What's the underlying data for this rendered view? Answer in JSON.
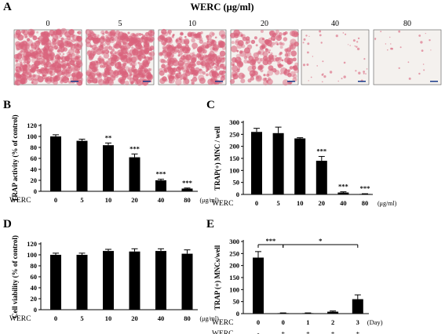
{
  "figure": {
    "title": "WERC  (μg/ml)",
    "panel_letters": [
      "A",
      "B",
      "C",
      "D",
      "E"
    ]
  },
  "micrographs": {
    "concentrations": [
      "0",
      "5",
      "10",
      "20",
      "40",
      "80"
    ],
    "stain_levels": [
      1.0,
      0.95,
      0.75,
      0.45,
      0.08,
      0.03
    ],
    "stain_color": "#d9637c"
  },
  "chart_data": [
    {
      "panel": "B",
      "type": "bar",
      "ylabel": "TRAP activity (% of control)",
      "ylim": [
        0,
        120
      ],
      "yticks": [
        "0",
        "20",
        "40",
        "60",
        "80",
        "100",
        "120"
      ],
      "row_label": "WERC",
      "categories": [
        "0",
        "5",
        "10",
        "20",
        "40",
        "80"
      ],
      "values": [
        100,
        92,
        84,
        62,
        20,
        5
      ],
      "errors": [
        3,
        3,
        4,
        6,
        2,
        1
      ],
      "significance": [
        "",
        "",
        "**",
        "***",
        "***",
        "***"
      ],
      "unit": "(μg/ml)"
    },
    {
      "panel": "C",
      "type": "bar",
      "ylabel": "TRAP(+) MNC / well",
      "ylim": [
        0,
        300
      ],
      "yticks": [
        "0",
        "50",
        "100",
        "150",
        "200",
        "250",
        "300"
      ],
      "row_label": "WERC",
      "categories": [
        "0",
        "5",
        "10",
        "20",
        "40",
        "80"
      ],
      "values": [
        260,
        255,
        233,
        140,
        8,
        2
      ],
      "errors": [
        15,
        25,
        3,
        18,
        3,
        1
      ],
      "significance": [
        "",
        "",
        "",
        "***",
        "***",
        "***"
      ],
      "unit": "(μg/ml)"
    },
    {
      "panel": "D",
      "type": "bar",
      "ylabel": "Cell viability (% of control)",
      "ylim": [
        0,
        120
      ],
      "yticks": [
        "0",
        "20",
        "40",
        "60",
        "80",
        "100",
        "120"
      ],
      "row_label": "WERC",
      "categories": [
        "0",
        "5",
        "10",
        "20",
        "40",
        "80"
      ],
      "values": [
        100,
        100,
        107,
        106,
        107,
        102
      ],
      "errors": [
        3,
        3,
        3,
        5,
        4,
        7
      ],
      "significance": [
        "",
        "",
        "",
        "",
        "",
        ""
      ],
      "unit": "(μg/ml)"
    },
    {
      "panel": "E",
      "type": "bar",
      "ylabel": "TRAP (+) MNCs/well",
      "ylim": [
        0,
        300
      ],
      "yticks": [
        "0",
        "50",
        "100",
        "150",
        "200",
        "250",
        "300"
      ],
      "row_label": "WERC",
      "categories": [
        "0",
        "0",
        "1",
        "2",
        "3"
      ],
      "row_values": [
        "-",
        "+",
        "+",
        "+",
        "+"
      ],
      "values": [
        233,
        2,
        2,
        8,
        60
      ],
      "errors": [
        25,
        1,
        1,
        3,
        18
      ],
      "unit": "(Day)",
      "brackets": [
        {
          "from": 0,
          "to": 1,
          "label": "***"
        },
        {
          "from": 1,
          "to": 4,
          "label": "*"
        }
      ]
    }
  ]
}
